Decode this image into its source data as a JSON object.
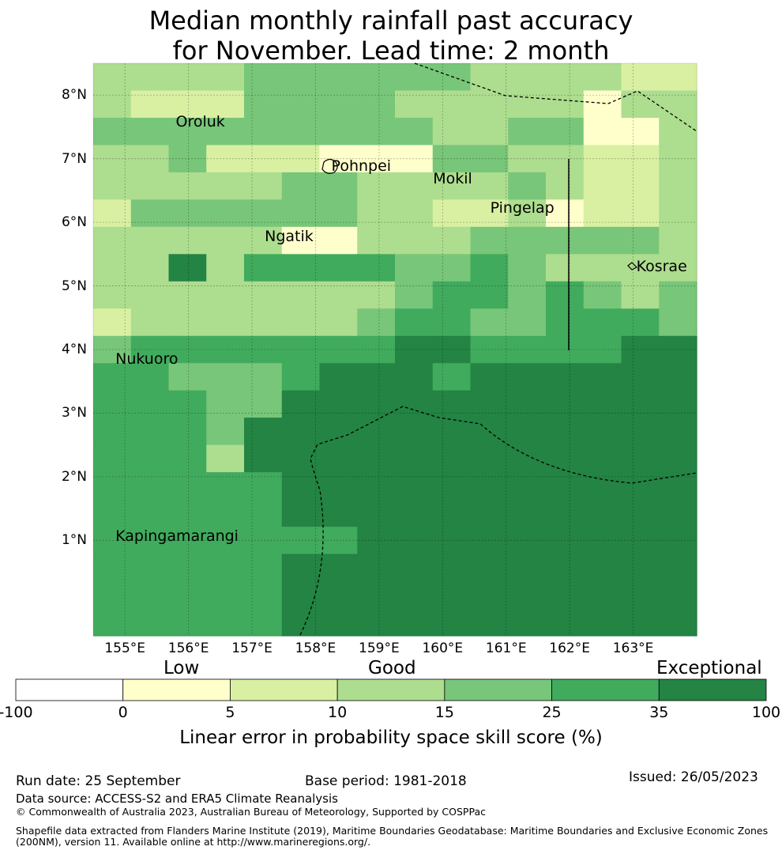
{
  "title": {
    "line1": "Median monthly rainfall past accuracy",
    "line2": "for November. Lead time: 2 month"
  },
  "map": {
    "lon_range": [
      154.5,
      164.0
    ],
    "lat_range": [
      -0.5,
      8.5
    ],
    "cell_size_deg": 0.8333,
    "xticks": [
      "155°E",
      "156°E",
      "157°E",
      "158°E",
      "159°E",
      "160°E",
      "161°E",
      "162°E",
      "163°E"
    ],
    "yticks": [
      "8°N",
      "7°N",
      "6°N",
      "5°N",
      "4°N",
      "3°N",
      "2°N",
      "1°N"
    ],
    "grid": true,
    "skill_grid_classes": [
      "3333444444333322",
      "3222444433333133",
      "4444444443344113",
      "3342221114433223",
      "3333344333343223",
      "2444444332231223",
      "3333311333444443",
      "3363555544543333",
      "3333333345545434",
      "2333333455445554",
      "4555555566555566",
      "5544456665666666",
      "5554466666666666",
      "5554666666666666",
      "5553666666666666",
      "5555566666666666",
      "5555566666666666",
      "5555555666666666",
      "5555566666666666",
      "5555566666666666",
      "5555566666666666"
    ],
    "places": [
      {
        "name": "Oroluk",
        "lon": 155.75,
        "lat": 7.58
      },
      {
        "name": "Pohnpei",
        "lon": 158.2,
        "lat": 6.88
      },
      {
        "name": "Mokil",
        "lon": 159.8,
        "lat": 6.68
      },
      {
        "name": "Pingelap",
        "lon": 160.7,
        "lat": 6.22
      },
      {
        "name": "Ngatik",
        "lon": 157.15,
        "lat": 5.78
      },
      {
        "name": "Kosrae",
        "lon": 163.0,
        "lat": 5.31
      },
      {
        "name": "Nukuoro",
        "lon": 154.8,
        "lat": 3.85
      },
      {
        "name": "Kapingamarangi",
        "lon": 154.8,
        "lat": 1.07
      }
    ]
  },
  "colorbar": {
    "words": [
      "Low",
      "Good",
      "Exceptional"
    ],
    "ticks": [
      "-100",
      "0",
      "5",
      "10",
      "15",
      "25",
      "35",
      "100"
    ],
    "colors": [
      "#ffffff",
      "#ffffcc",
      "#d9f0a3",
      "#addd8e",
      "#78c679",
      "#41ab5d",
      "#238443"
    ],
    "label": "Linear error in probability space skill score (%)"
  },
  "footer": {
    "run_date": "Run date: 25 September",
    "base_period": "Base period: 1981-2018",
    "issued": "Issued: 26/05/2023",
    "data_source": "Data source: ACCESS-S2 and ERA5 Climate Reanalysis",
    "copyright": "© Commonwealth of Australia 2023, Australian Bureau of Meteorology, Supported by COSPPac",
    "shapefile_line1": "Shapefile data extracted from Flanders Marine Institute (2019), Maritime Boundaries Geodatabase: Maritime Boundaries and Exclusive Economic Zones",
    "shapefile_line2": "(200NM), version 11. Available online at http://www.marineregions.org/."
  }
}
